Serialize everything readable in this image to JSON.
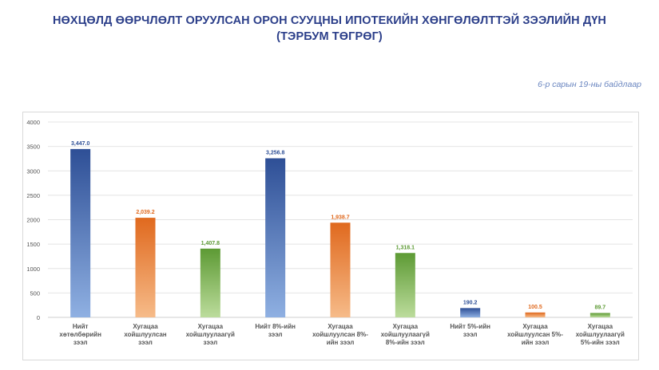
{
  "header": {
    "title_line1": "НӨХЦӨЛД ӨӨРЧЛӨЛТ ОРУУЛСАН ОРОН СУУЦНЫ ИПОТЕКИЙН ХӨНГӨЛӨЛТТЭЙ ЗЭЭЛИЙН ДҮН",
    "title_line2": "(ТЭРБУМ ТӨГРӨГ)",
    "note": "6-р сарын 19-ны байдлаар"
  },
  "colors": {
    "blue": "#2e4f96",
    "blue_light": "#8fb0e2",
    "orange": "#e0691e",
    "orange_light": "#f6bb89",
    "green": "#5d9a34",
    "green_light": "#bcdc9c",
    "grid": "#e4e4e4",
    "axis_text": "#555555"
  },
  "chart_data": {
    "type": "bar",
    "title": "НӨХЦӨЛД ӨӨРЧЛӨЛТ ОРУУЛСАН ОРОН СУУЦНЫ ИПОТЕКИЙН ХӨНГӨЛӨЛТТЭЙ ЗЭЭЛИЙН ДҮН (ТЭРБУМ ТӨГРӨГ)",
    "categories": [
      [
        "Нийт",
        "хөтөлбөрийн",
        "зээл"
      ],
      [
        "Хугацаа",
        "хойшлуулсан",
        "зээл"
      ],
      [
        "Хугацаа",
        "хойшлуулаагүй",
        "зээл"
      ],
      [
        "Нийт 8%-ийн",
        "зээл"
      ],
      [
        "Хугацаа",
        "хойшлуулсан 8%-",
        "ийн зээл"
      ],
      [
        "Хугацаа",
        "хойшлуулаагүй",
        "8%-ийн зээл"
      ],
      [
        "Нийт 5%-ийн",
        "зээл"
      ],
      [
        "Хугацаа",
        "хойшлуулсан 5%-",
        "ийн зээл"
      ],
      [
        "Хугацаа",
        "хойшлуулаагүй",
        "5%-ийн зээл"
      ]
    ],
    "values": [
      3447.0,
      2039.2,
      1407.8,
      3256.8,
      1938.7,
      1318.1,
      190.2,
      100.5,
      89.7
    ],
    "value_labels": [
      "3,447.0",
      "2,039.2",
      "1,407.8",
      "3,256.8",
      "1,938.7",
      "1,318.1",
      "190.2",
      "100.5",
      "89.7"
    ],
    "bar_colors": [
      "blue",
      "orange",
      "green",
      "blue",
      "orange",
      "green",
      "blue",
      "orange",
      "green"
    ],
    "y_ticks": [
      "0",
      "500",
      "1000",
      "1500",
      "2000",
      "2500",
      "3000",
      "3500",
      "4000"
    ],
    "ylim": [
      0,
      4000
    ],
    "grid": true,
    "legend": "none"
  }
}
